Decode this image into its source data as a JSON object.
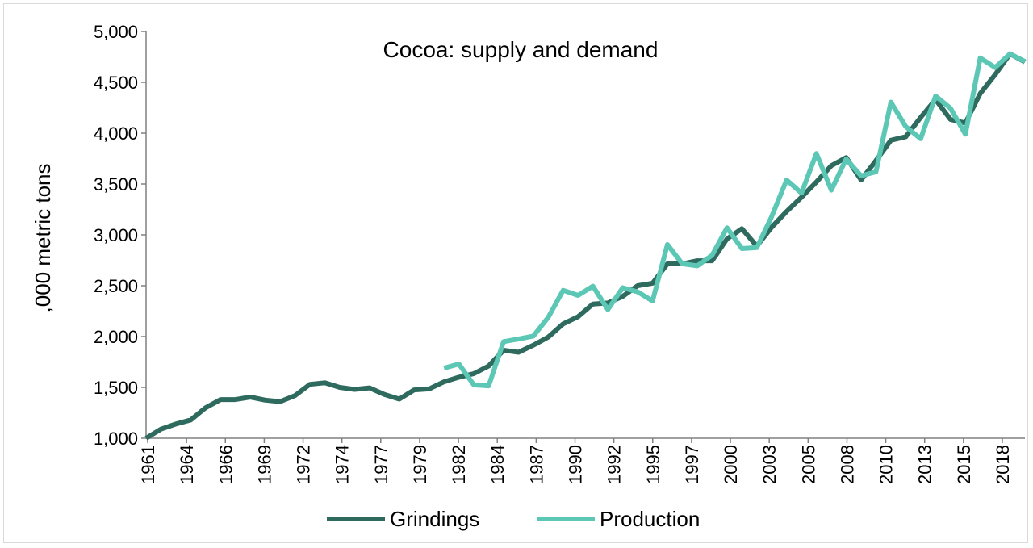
{
  "chart_data": {
    "type": "line",
    "title": "Cocoa: supply and demand",
    "xlabel": "",
    "ylabel": ",000 metric tons",
    "ylim": [
      1000,
      5000
    ],
    "y_ticks": [
      1000,
      1500,
      2000,
      2500,
      3000,
      3500,
      4000,
      4500,
      5000
    ],
    "y_tick_labels": [
      "1,000",
      "1,500",
      "2,000",
      "2,500",
      "3,000",
      "3,500",
      "4,000",
      "4,500",
      "5,000"
    ],
    "x_range": [
      1961,
      2020
    ],
    "x_tick_labels": [
      "1961",
      "1964",
      "1966",
      "1969",
      "1972",
      "1974",
      "1977",
      "1979",
      "1982",
      "1984",
      "1987",
      "1990",
      "1992",
      "1995",
      "1997",
      "2000",
      "2003",
      "2005",
      "2008",
      "2010",
      "2013",
      "2015",
      "2018"
    ],
    "grid": false,
    "legend_position": "bottom",
    "series": [
      {
        "name": "Grindings",
        "color": "#2e6b5e",
        "x": [
          1961,
          1962,
          1963,
          1964,
          1965,
          1966,
          1967,
          1968,
          1969,
          1970,
          1971,
          1972,
          1973,
          1974,
          1975,
          1976,
          1977,
          1978,
          1979,
          1980,
          1981,
          1982,
          1983,
          1984,
          1985,
          1986,
          1987,
          1988,
          1989,
          1990,
          1991,
          1992,
          1993,
          1994,
          1995,
          1996,
          1997,
          1998,
          1999,
          2000,
          2001,
          2002,
          2003,
          2004,
          2005,
          2006,
          2007,
          2008,
          2009,
          2010,
          2011,
          2012,
          2013,
          2014,
          2015,
          2016,
          2017,
          2018,
          2019,
          2020
        ],
        "values": [
          1000,
          1090,
          1140,
          1180,
          1300,
          1380,
          1380,
          1405,
          1375,
          1360,
          1420,
          1530,
          1545,
          1500,
          1480,
          1495,
          1430,
          1385,
          1475,
          1485,
          1555,
          1600,
          1635,
          1710,
          1865,
          1845,
          1915,
          1995,
          2125,
          2195,
          2320,
          2330,
          2395,
          2500,
          2525,
          2715,
          2715,
          2745,
          2745,
          2960,
          3060,
          2890,
          3075,
          3230,
          3370,
          3520,
          3680,
          3760,
          3540,
          3730,
          3930,
          3965,
          4155,
          4330,
          4135,
          4100,
          4390,
          4575,
          4780,
          4700
        ]
      },
      {
        "name": "Production",
        "color": "#5cc7b5",
        "x": [
          1981,
          1982,
          1983,
          1984,
          1985,
          1986,
          1987,
          1988,
          1989,
          1990,
          1991,
          1992,
          1993,
          1994,
          1995,
          1996,
          1997,
          1998,
          1999,
          2000,
          2001,
          2002,
          2003,
          2004,
          2005,
          2006,
          2007,
          2008,
          2009,
          2010,
          2011,
          2012,
          2013,
          2014,
          2015,
          2016,
          2017,
          2018,
          2019,
          2020
        ],
        "values": [
          1690,
          1730,
          1525,
          1515,
          1950,
          1975,
          2005,
          2190,
          2455,
          2405,
          2495,
          2265,
          2480,
          2440,
          2350,
          2905,
          2715,
          2695,
          2800,
          3070,
          2865,
          2875,
          3180,
          3540,
          3410,
          3800,
          3440,
          3745,
          3580,
          3620,
          4305,
          4065,
          3945,
          4365,
          4245,
          3990,
          4740,
          4645,
          4780,
          4705
        ]
      }
    ]
  }
}
